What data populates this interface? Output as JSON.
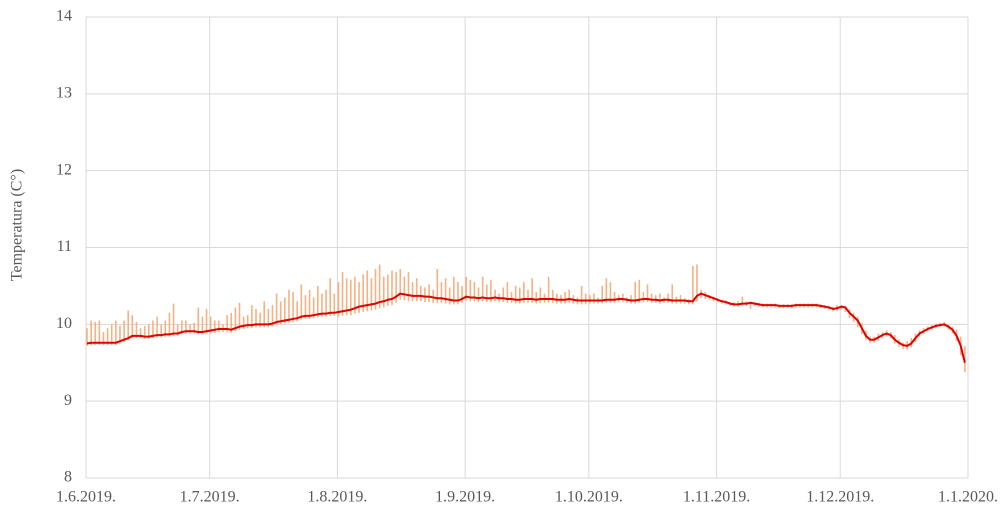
{
  "chart_data": {
    "type": "line",
    "y_label": "Temperatura (C°)",
    "line_color": "#e00000",
    "range_color": "#f4b183",
    "grid": true,
    "ylim": [
      8,
      14
    ],
    "yticks": [
      8,
      9,
      10,
      11,
      12,
      13,
      14
    ],
    "xlim": [
      "1.6.2019.",
      "1.1.2020."
    ],
    "xticks": [
      "1.6.2019.",
      "1.7.2019.",
      "1.8.2019.",
      "1.9.2019.",
      "1.10.2019.",
      "1.11.2019.",
      "1.12.2019.",
      "1.1.2020."
    ],
    "x": [
      "1.6.2019.",
      "2.6.2019.",
      "3.6.2019.",
      "4.6.2019.",
      "5.6.2019.",
      "6.6.2019.",
      "7.6.2019.",
      "8.6.2019.",
      "9.6.2019.",
      "10.6.2019.",
      "11.6.2019.",
      "12.6.2019.",
      "13.6.2019.",
      "14.6.2019.",
      "15.6.2019.",
      "16.6.2019.",
      "17.6.2019.",
      "18.6.2019.",
      "19.6.2019.",
      "20.6.2019.",
      "21.6.2019.",
      "22.6.2019.",
      "23.6.2019.",
      "24.6.2019.",
      "25.6.2019.",
      "26.6.2019.",
      "27.6.2019.",
      "28.6.2019.",
      "29.6.2019.",
      "30.6.2019.",
      "1.7.2019.",
      "2.7.2019.",
      "3.7.2019.",
      "4.7.2019.",
      "5.7.2019.",
      "6.7.2019.",
      "7.7.2019.",
      "8.7.2019.",
      "9.7.2019.",
      "10.7.2019.",
      "11.7.2019.",
      "12.7.2019.",
      "13.7.2019.",
      "14.7.2019.",
      "15.7.2019.",
      "16.7.2019.",
      "17.7.2019.",
      "18.7.2019.",
      "19.7.2019.",
      "20.7.2019.",
      "21.7.2019.",
      "22.7.2019.",
      "23.7.2019.",
      "24.7.2019.",
      "25.7.2019.",
      "26.7.2019.",
      "27.7.2019.",
      "28.7.2019.",
      "29.7.2019.",
      "30.7.2019.",
      "31.7.2019.",
      "1.8.2019.",
      "2.8.2019.",
      "3.8.2019.",
      "4.8.2019.",
      "5.8.2019.",
      "6.8.2019.",
      "7.8.2019.",
      "8.8.2019.",
      "9.8.2019.",
      "10.8.2019.",
      "11.8.2019.",
      "12.8.2019.",
      "13.8.2019.",
      "14.8.2019.",
      "15.8.2019.",
      "16.8.2019.",
      "17.8.2019.",
      "18.8.2019.",
      "19.8.2019.",
      "20.8.2019.",
      "21.8.2019.",
      "22.8.2019.",
      "23.8.2019.",
      "24.8.2019.",
      "25.8.2019.",
      "26.8.2019.",
      "27.8.2019.",
      "28.8.2019.",
      "29.8.2019.",
      "30.8.2019.",
      "31.8.2019.",
      "1.9.2019.",
      "2.9.2019.",
      "3.9.2019.",
      "4.9.2019.",
      "5.9.2019.",
      "6.9.2019.",
      "7.9.2019.",
      "8.9.2019.",
      "9.9.2019.",
      "10.9.2019.",
      "11.9.2019.",
      "12.9.2019.",
      "13.9.2019.",
      "14.9.2019.",
      "15.9.2019.",
      "16.9.2019.",
      "17.9.2019.",
      "18.9.2019.",
      "19.9.2019.",
      "20.9.2019.",
      "21.9.2019.",
      "22.9.2019.",
      "23.9.2019.",
      "24.9.2019.",
      "25.9.2019.",
      "26.9.2019.",
      "27.9.2019.",
      "28.9.2019.",
      "29.9.2019.",
      "30.9.2019.",
      "1.10.2019.",
      "2.10.2019.",
      "3.10.2019.",
      "4.10.2019.",
      "5.10.2019.",
      "6.10.2019.",
      "7.10.2019.",
      "8.10.2019.",
      "9.10.2019.",
      "10.10.2019.",
      "11.10.2019.",
      "12.10.2019.",
      "13.10.2019.",
      "14.10.2019.",
      "15.10.2019.",
      "16.10.2019.",
      "17.10.2019.",
      "18.10.2019.",
      "19.10.2019.",
      "20.10.2019.",
      "21.10.2019.",
      "22.10.2019.",
      "23.10.2019.",
      "24.10.2019.",
      "25.10.2019.",
      "26.10.2019.",
      "27.10.2019.",
      "28.10.2019.",
      "29.10.2019.",
      "30.10.2019.",
      "31.10.2019.",
      "1.11.2019.",
      "2.11.2019.",
      "3.11.2019.",
      "4.11.2019.",
      "5.11.2019.",
      "6.11.2019.",
      "7.11.2019.",
      "8.11.2019.",
      "9.11.2019.",
      "10.11.2019.",
      "11.11.2019.",
      "12.11.2019.",
      "13.11.2019.",
      "14.11.2019.",
      "15.11.2019.",
      "16.11.2019.",
      "17.11.2019.",
      "18.11.2019.",
      "19.11.2019.",
      "20.11.2019.",
      "21.11.2019.",
      "22.11.2019.",
      "23.11.2019.",
      "24.11.2019.",
      "25.11.2019.",
      "26.11.2019.",
      "27.11.2019.",
      "28.11.2019.",
      "29.11.2019.",
      "30.11.2019.",
      "1.12.2019.",
      "2.12.2019.",
      "3.12.2019.",
      "4.12.2019.",
      "5.12.2019.",
      "6.12.2019.",
      "7.12.2019.",
      "8.12.2019.",
      "9.12.2019.",
      "10.12.2019.",
      "11.12.2019.",
      "12.12.2019.",
      "13.12.2019.",
      "14.12.2019.",
      "15.12.2019.",
      "16.12.2019.",
      "17.12.2019.",
      "18.12.2019.",
      "19.12.2019.",
      "20.12.2019.",
      "21.12.2019.",
      "22.12.2019.",
      "23.12.2019.",
      "24.12.2019.",
      "25.12.2019.",
      "26.12.2019.",
      "27.12.2019.",
      "28.12.2019.",
      "29.12.2019.",
      "30.12.2019.",
      "31.12.2019."
    ],
    "values": [
      9.75,
      9.76,
      9.76,
      9.76,
      9.76,
      9.76,
      9.76,
      9.76,
      9.78,
      9.8,
      9.82,
      9.85,
      9.85,
      9.85,
      9.84,
      9.84,
      9.85,
      9.86,
      9.86,
      9.87,
      9.87,
      9.88,
      9.88,
      9.9,
      9.91,
      9.91,
      9.91,
      9.9,
      9.9,
      9.91,
      9.92,
      9.93,
      9.94,
      9.94,
      9.94,
      9.93,
      9.95,
      9.97,
      9.98,
      9.99,
      9.99,
      10.0,
      10.0,
      10.0,
      10.0,
      10.01,
      10.03,
      10.04,
      10.05,
      10.06,
      10.07,
      10.08,
      10.1,
      10.11,
      10.11,
      10.12,
      10.13,
      10.14,
      10.14,
      10.15,
      10.15,
      10.16,
      10.17,
      10.18,
      10.19,
      10.21,
      10.23,
      10.24,
      10.25,
      10.26,
      10.27,
      10.29,
      10.3,
      10.32,
      10.33,
      10.36,
      10.4,
      10.39,
      10.38,
      10.37,
      10.37,
      10.37,
      10.36,
      10.36,
      10.35,
      10.34,
      10.34,
      10.33,
      10.32,
      10.31,
      10.31,
      10.33,
      10.36,
      10.35,
      10.35,
      10.34,
      10.35,
      10.34,
      10.34,
      10.35,
      10.34,
      10.34,
      10.33,
      10.33,
      10.32,
      10.32,
      10.33,
      10.33,
      10.33,
      10.32,
      10.33,
      10.33,
      10.33,
      10.33,
      10.32,
      10.32,
      10.32,
      10.33,
      10.32,
      10.31,
      10.31,
      10.31,
      10.31,
      10.31,
      10.31,
      10.31,
      10.32,
      10.32,
      10.32,
      10.33,
      10.33,
      10.32,
      10.31,
      10.31,
      10.32,
      10.33,
      10.33,
      10.32,
      10.32,
      10.31,
      10.32,
      10.32,
      10.31,
      10.31,
      10.31,
      10.31,
      10.3,
      10.3,
      10.37,
      10.4,
      10.38,
      10.36,
      10.34,
      10.32,
      10.3,
      10.29,
      10.27,
      10.26,
      10.26,
      10.27,
      10.27,
      10.28,
      10.27,
      10.26,
      10.25,
      10.25,
      10.25,
      10.25,
      10.24,
      10.24,
      10.24,
      10.24,
      10.25,
      10.25,
      10.25,
      10.25,
      10.25,
      10.25,
      10.24,
      10.23,
      10.22,
      10.2,
      10.21,
      10.23,
      10.22,
      10.15,
      10.1,
      10.05,
      9.95,
      9.85,
      9.8,
      9.8,
      9.83,
      9.86,
      9.88,
      9.86,
      9.8,
      9.76,
      9.73,
      9.72,
      9.75,
      9.82,
      9.88,
      9.91,
      9.94,
      9.96,
      9.98,
      9.99,
      10.0,
      9.97,
      9.93,
      9.85,
      9.72,
      9.5
    ],
    "low": [
      9.72,
      9.73,
      9.73,
      9.73,
      9.73,
      9.73,
      9.73,
      9.73,
      9.75,
      9.77,
      9.79,
      9.82,
      9.82,
      9.82,
      9.81,
      9.81,
      9.82,
      9.83,
      9.83,
      9.84,
      9.84,
      9.85,
      9.85,
      9.87,
      9.88,
      9.88,
      9.88,
      9.87,
      9.87,
      9.88,
      9.88,
      9.89,
      9.9,
      9.9,
      9.9,
      9.89,
      9.91,
      9.93,
      9.94,
      9.95,
      9.95,
      9.96,
      9.96,
      9.96,
      9.96,
      9.97,
      9.99,
      10.0,
      10.01,
      10.02,
      10.03,
      10.04,
      10.06,
      10.07,
      10.07,
      10.08,
      10.09,
      10.1,
      10.1,
      10.11,
      10.11,
      10.1,
      10.11,
      10.12,
      10.12,
      10.14,
      10.15,
      10.16,
      10.17,
      10.18,
      10.19,
      10.21,
      10.22,
      10.24,
      10.25,
      10.28,
      10.32,
      10.31,
      10.3,
      10.3,
      10.3,
      10.3,
      10.29,
      10.29,
      10.28,
      10.28,
      10.28,
      10.27,
      10.26,
      10.26,
      10.26,
      10.28,
      10.31,
      10.3,
      10.3,
      10.29,
      10.3,
      10.29,
      10.29,
      10.3,
      10.29,
      10.29,
      10.28,
      10.28,
      10.27,
      10.27,
      10.28,
      10.28,
      10.28,
      10.27,
      10.28,
      10.28,
      10.28,
      10.28,
      10.27,
      10.27,
      10.27,
      10.28,
      10.27,
      10.26,
      10.26,
      10.26,
      10.27,
      10.27,
      10.27,
      10.27,
      10.28,
      10.28,
      10.28,
      10.29,
      10.29,
      10.28,
      10.27,
      10.27,
      10.28,
      10.29,
      10.29,
      10.28,
      10.28,
      10.27,
      10.28,
      10.28,
      10.27,
      10.27,
      10.27,
      10.27,
      10.26,
      10.26,
      10.3,
      10.34,
      10.33,
      10.32,
      10.3,
      10.29,
      10.27,
      10.26,
      10.24,
      10.23,
      10.23,
      10.24,
      10.24,
      10.2,
      10.24,
      10.23,
      10.22,
      10.22,
      10.22,
      10.22,
      10.21,
      10.21,
      10.21,
      10.21,
      10.22,
      10.22,
      10.22,
      10.22,
      10.22,
      10.22,
      10.21,
      10.2,
      10.19,
      10.17,
      10.18,
      10.19,
      10.16,
      10.08,
      10.03,
      9.96,
      9.87,
      9.8,
      9.76,
      9.76,
      9.79,
      9.82,
      9.84,
      9.82,
      9.75,
      9.71,
      9.68,
      9.67,
      9.7,
      9.77,
      9.84,
      9.88,
      9.91,
      9.93,
      9.95,
      9.97,
      9.97,
      9.93,
      9.88,
      9.78,
      9.6,
      9.38
    ],
    "high": [
      9.95,
      10.05,
      10.03,
      10.05,
      9.9,
      9.95,
      10.0,
      10.05,
      9.98,
      10.05,
      10.18,
      10.12,
      10.03,
      9.95,
      9.98,
      10.0,
      10.05,
      10.1,
      10.0,
      10.05,
      10.15,
      10.27,
      10.0,
      10.05,
      10.05,
      10.0,
      10.02,
      10.22,
      10.1,
      10.2,
      10.1,
      10.05,
      10.05,
      10.0,
      10.12,
      10.15,
      10.22,
      10.28,
      10.1,
      10.12,
      10.25,
      10.2,
      10.15,
      10.3,
      10.2,
      10.25,
      10.4,
      10.3,
      10.35,
      10.45,
      10.42,
      10.3,
      10.52,
      10.38,
      10.45,
      10.35,
      10.5,
      10.4,
      10.45,
      10.6,
      10.4,
      10.55,
      10.68,
      10.6,
      10.58,
      10.62,
      10.55,
      10.65,
      10.7,
      10.6,
      10.72,
      10.78,
      10.62,
      10.65,
      10.7,
      10.68,
      10.72,
      10.62,
      10.68,
      10.55,
      10.6,
      10.5,
      10.48,
      10.52,
      10.45,
      10.72,
      10.55,
      10.6,
      10.48,
      10.62,
      10.55,
      10.5,
      10.62,
      10.58,
      10.55,
      10.48,
      10.62,
      10.52,
      10.58,
      10.45,
      10.4,
      10.48,
      10.55,
      10.42,
      10.5,
      10.48,
      10.55,
      10.45,
      10.6,
      10.42,
      10.48,
      10.4,
      10.62,
      10.45,
      10.4,
      10.38,
      10.42,
      10.45,
      10.38,
      10.35,
      10.5,
      10.4,
      10.38,
      10.4,
      10.35,
      10.5,
      10.6,
      10.55,
      10.42,
      10.38,
      10.4,
      10.35,
      10.38,
      10.55,
      10.58,
      10.42,
      10.52,
      10.4,
      10.38,
      10.4,
      10.35,
      10.4,
      10.52,
      10.36,
      10.38,
      10.34,
      10.33,
      10.76,
      10.78,
      10.45,
      10.42,
      10.38,
      10.36,
      10.34,
      10.32,
      10.31,
      10.29,
      10.29,
      10.3,
      10.36,
      10.3,
      10.3,
      10.29,
      10.28,
      10.27,
      10.27,
      10.27,
      10.27,
      10.26,
      10.26,
      10.26,
      10.26,
      10.27,
      10.27,
      10.27,
      10.27,
      10.27,
      10.27,
      10.26,
      10.25,
      10.24,
      10.23,
      10.25,
      10.25,
      10.24,
      10.2,
      10.15,
      10.1,
      10.02,
      9.92,
      9.84,
      9.84,
      9.88,
      9.9,
      9.92,
      9.9,
      9.86,
      9.8,
      9.76,
      9.78,
      9.82,
      9.88,
      9.92,
      9.95,
      9.97,
      9.99,
      10.01,
      10.02,
      10.03,
      10.0,
      9.97,
      9.93,
      9.84,
      9.72
    ]
  }
}
